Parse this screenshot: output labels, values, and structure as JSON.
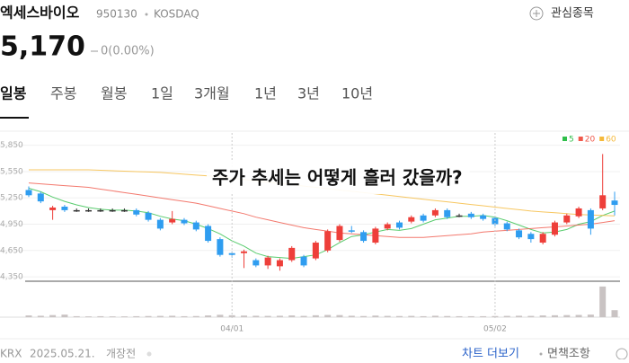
{
  "header": {
    "name": "엑세스바이오",
    "code": "950130",
    "market": "KOSDAQ",
    "watch": "관심종목"
  },
  "quote": {
    "price": "5,170",
    "change": "0(0.00%)"
  },
  "tabs": {
    "items": [
      "일봉",
      "주봉",
      "월봉",
      "1일",
      "3개월",
      "1년",
      "3년",
      "10년"
    ],
    "selected": 0
  },
  "chart_data": {
    "type": "candlestick",
    "annotation": "주가 추세는 어떻게 흘러 갔을까?",
    "categories": [
      null,
      null,
      null,
      null,
      null,
      null,
      null,
      null,
      null,
      null,
      null,
      null,
      null,
      null,
      null,
      null,
      null,
      "04/01",
      null,
      null,
      null,
      null,
      null,
      null,
      null,
      null,
      null,
      null,
      null,
      null,
      null,
      null,
      null,
      null,
      null,
      null,
      null,
      null,
      null,
      "05/02",
      null,
      null,
      null,
      null,
      null,
      null,
      null,
      null,
      null,
      null
    ],
    "open": [
      5340,
      5300,
      5110,
      5150,
      5110,
      5110,
      5110,
      5110,
      5110,
      5110,
      5080,
      5000,
      4970,
      5000,
      4970,
      4930,
      4780,
      4620,
      4620,
      4540,
      4480,
      4470,
      4540,
      4580,
      4560,
      4650,
      4770,
      4880,
      4860,
      4740,
      4900,
      4970,
      4980,
      5050,
      5050,
      5110,
      5050,
      5070,
      5050,
      5020,
      4960,
      4880,
      4840,
      4740,
      4830,
      4970,
      5040,
      5110,
      5130,
      5220
    ],
    "high": [
      5380,
      5320,
      5160,
      5170,
      5130,
      5130,
      5130,
      5130,
      5130,
      5130,
      5100,
      5020,
      5100,
      5020,
      4990,
      4950,
      4800,
      4640,
      4660,
      4560,
      4590,
      4560,
      4700,
      4600,
      4760,
      4890,
      4950,
      4930,
      4880,
      4920,
      4970,
      4990,
      5050,
      5070,
      5130,
      5130,
      5070,
      5090,
      5070,
      5040,
      4980,
      4900,
      4860,
      4860,
      4990,
      5070,
      5150,
      5130,
      5750,
      5320
    ],
    "low": [
      5260,
      5190,
      5000,
      5090,
      5090,
      5090,
      5090,
      5090,
      5090,
      5040,
      4980,
      4880,
      4950,
      4940,
      4870,
      4740,
      4580,
      4570,
      4450,
      4460,
      4440,
      4420,
      4520,
      4460,
      4540,
      4630,
      4750,
      4850,
      4740,
      4720,
      4880,
      4890,
      4960,
      4970,
      5030,
      5010,
      5030,
      5010,
      4990,
      4930,
      4870,
      4780,
      4740,
      4720,
      4810,
      4950,
      5020,
      4830,
      5110,
      5050
    ],
    "close": [
      5280,
      5210,
      5140,
      5110,
      5110,
      5110,
      5110,
      5110,
      5110,
      5060,
      5000,
      4900,
      5010,
      4960,
      4890,
      4760,
      4600,
      4600,
      4640,
      4480,
      4570,
      4540,
      4680,
      4480,
      4740,
      4870,
      4930,
      4870,
      4760,
      4900,
      4950,
      4910,
      5030,
      4990,
      5110,
      5030,
      5050,
      5030,
      5010,
      4950,
      4890,
      4800,
      4780,
      4840,
      4970,
      5050,
      5130,
      4900,
      5280,
      5170
    ],
    "volume": [
      110,
      90,
      130,
      160,
      60,
      50,
      60,
      50,
      50,
      60,
      70,
      80,
      90,
      60,
      70,
      110,
      150,
      120,
      100,
      90,
      80,
      90,
      110,
      80,
      120,
      140,
      130,
      90,
      70,
      100,
      80,
      70,
      80,
      60,
      90,
      70,
      60,
      60,
      60,
      70,
      80,
      90,
      80,
      110,
      120,
      130,
      140,
      160,
      1925,
      440
    ],
    "moving_averages": [
      {
        "name": "5",
        "color": "#2fbf4a",
        "values": [
          5360,
          5320,
          5260,
          5210,
          5170,
          5140,
          5120,
          5110,
          5110,
          5100,
          5080,
          5040,
          5010,
          4990,
          4950,
          4900,
          4840,
          4760,
          4700,
          4620,
          4580,
          4570,
          4560,
          4580,
          4600,
          4660,
          4740,
          4810,
          4830,
          4860,
          4890,
          4880,
          4900,
          4950,
          5000,
          5020,
          5040,
          5040,
          5050,
          5030,
          4990,
          4940,
          4890,
          4850,
          4860,
          4890,
          4950,
          4980,
          5050,
          5100
        ]
      },
      {
        "name": "20",
        "color": "#f0584a",
        "values": [
          5420,
          5410,
          5400,
          5390,
          5380,
          5370,
          5350,
          5330,
          5310,
          5290,
          5270,
          5250,
          5230,
          5210,
          5190,
          5160,
          5130,
          5100,
          5070,
          5030,
          5000,
          4970,
          4940,
          4910,
          4890,
          4870,
          4850,
          4840,
          4830,
          4820,
          4810,
          4800,
          4800,
          4800,
          4810,
          4820,
          4830,
          4840,
          4860,
          4870,
          4880,
          4890,
          4900,
          4910,
          4920,
          4930,
          4940,
          4950,
          4970,
          4990
        ]
      },
      {
        "name": "60",
        "color": "#f5b93a",
        "values": [
          5570,
          5570,
          5570,
          5570,
          5570,
          5570,
          5565,
          5560,
          5555,
          5550,
          5545,
          5540,
          5530,
          5520,
          5510,
          5500,
          5490,
          5475,
          5460,
          5445,
          5430,
          5415,
          5400,
          5385,
          5370,
          5355,
          5340,
          5325,
          5310,
          5295,
          5280,
          5265,
          5250,
          5235,
          5220,
          5205,
          5190,
          5175,
          5160,
          5145,
          5130,
          5115,
          5100,
          5090,
          5080,
          5070,
          5060,
          5055,
          5050,
          5045
        ]
      }
    ],
    "colors": {
      "up": "#ee3f3a",
      "down": "#2f9df0",
      "flat": "#333333",
      "volume": "#c9c3c3"
    },
    "ylim": [
      4310,
      5990
    ],
    "yticks": [
      {
        "value": 5850,
        "label": "5,850"
      },
      {
        "value": 5550,
        "label": "5,550"
      },
      {
        "value": 5250,
        "label": "5,250"
      },
      {
        "value": 4950,
        "label": "4,950"
      },
      {
        "value": 4650,
        "label": "4,650"
      },
      {
        "value": 4350,
        "label": "4,350"
      }
    ],
    "vlim": [
      0,
      2200
    ],
    "grid": true
  },
  "footer": {
    "exchange": "KRX",
    "date": "2025.05.21.",
    "status": "개장전",
    "more": "차트 더보기",
    "disclaimer": "면책조항"
  }
}
